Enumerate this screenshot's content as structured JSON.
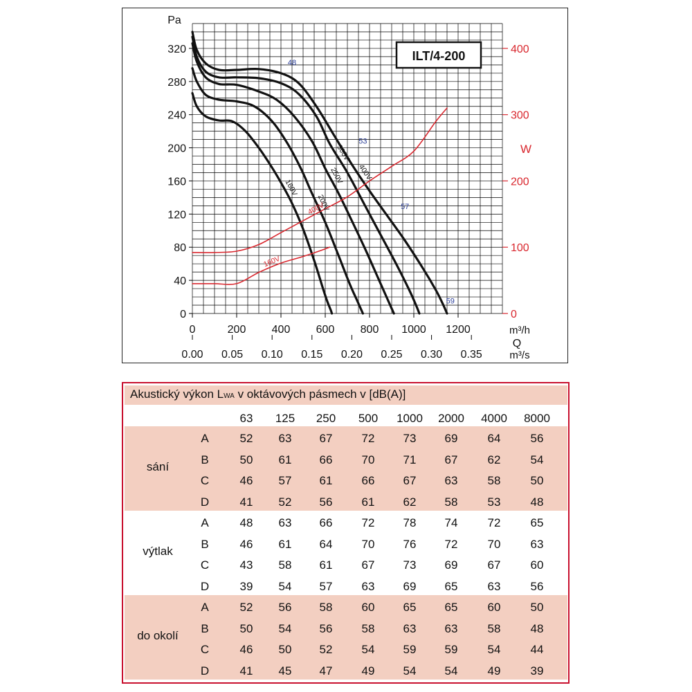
{
  "chart_data": {
    "type": "line",
    "title": "ILT/4-200",
    "y_left": {
      "label": "Pa",
      "range": [
        0,
        350
      ],
      "ticks": [
        0,
        40,
        80,
        120,
        160,
        200,
        240,
        280,
        320
      ]
    },
    "y_right": {
      "label": "W",
      "range": [
        0,
        400
      ],
      "ticks": [
        0,
        100,
        200,
        300,
        400
      ]
    },
    "x_primary": {
      "label": "m³/h",
      "range": [
        0,
        1400
      ],
      "ticks": [
        0,
        200,
        400,
        600,
        800,
        1000,
        1200
      ]
    },
    "x_secondary": {
      "prefix_label": "Q",
      "label": "m³/s",
      "ticks": [
        "0.00",
        "0.05",
        "0.10",
        "0.15",
        "0.20",
        "0.25",
        "0.30",
        "0.35"
      ]
    },
    "grid": true,
    "series": [
      {
        "name": "400V",
        "axis": "left",
        "color": "#111111",
        "x": [
          0,
          20,
          60,
          120,
          200,
          300,
          400,
          480,
          560,
          640,
          720,
          800,
          880,
          960,
          1040,
          1100,
          1130,
          1150
        ],
        "y": [
          340,
          318,
          302,
          294,
          294,
          295,
          290,
          278,
          250,
          215,
          180,
          148,
          118,
          88,
          55,
          28,
          12,
          0
        ]
      },
      {
        "name": "300V",
        "axis": "left",
        "color": "#111111",
        "x": [
          0,
          20,
          60,
          120,
          200,
          300,
          400,
          480,
          560,
          620,
          700,
          780,
          860,
          920,
          980,
          1010,
          1025
        ],
        "y": [
          334,
          310,
          292,
          285,
          285,
          284,
          278,
          265,
          238,
          205,
          170,
          130,
          90,
          60,
          28,
          10,
          0
        ]
      },
      {
        "name": "250V",
        "axis": "left",
        "color": "#111111",
        "x": [
          0,
          20,
          60,
          120,
          200,
          300,
          380,
          460,
          540,
          600,
          660,
          720,
          780,
          840,
          880,
          900,
          910
        ],
        "y": [
          326,
          304,
          285,
          277,
          276,
          268,
          258,
          238,
          208,
          175,
          145,
          112,
          78,
          42,
          18,
          6,
          0
        ]
      },
      {
        "name": "200V",
        "axis": "left",
        "color": "#111111",
        "x": [
          0,
          20,
          60,
          120,
          200,
          280,
          360,
          430,
          490,
          540,
          600,
          660,
          710,
          740,
          760,
          770
        ],
        "y": [
          296,
          280,
          264,
          258,
          256,
          250,
          232,
          205,
          175,
          145,
          110,
          70,
          36,
          18,
          6,
          0
        ]
      },
      {
        "name": "160V",
        "axis": "left",
        "color": "#111111",
        "x": [
          0,
          20,
          60,
          120,
          180,
          240,
          300,
          360,
          400,
          450,
          500,
          550,
          590,
          610,
          625,
          630
        ],
        "y": [
          266,
          250,
          238,
          233,
          232,
          220,
          200,
          176,
          158,
          133,
          102,
          64,
          30,
          14,
          4,
          0
        ]
      },
      {
        "name": "400V",
        "axis": "right",
        "color": "#d9272e",
        "x": [
          0,
          100,
          200,
          300,
          400,
          500,
          600,
          700,
          800,
          900,
          1000,
          1100,
          1150
        ],
        "y": [
          92,
          92,
          94,
          104,
          122,
          140,
          158,
          176,
          200,
          222,
          245,
          290,
          310
        ]
      },
      {
        "name": "160V",
        "axis": "right",
        "color": "#d9272e",
        "x": [
          0,
          100,
          200,
          300,
          400,
          500,
          580,
          620
        ],
        "y": [
          45,
          45,
          45,
          62,
          76,
          86,
          95,
          100
        ]
      }
    ],
    "curve_labels": [
      {
        "text": "400V",
        "series": 0
      },
      {
        "text": "300V",
        "series": 1
      },
      {
        "text": "250V",
        "series": 2
      },
      {
        "text": "200V",
        "series": 3
      },
      {
        "text": "160V",
        "series": 4
      },
      {
        "text": "400V",
        "series": 5
      },
      {
        "text": "160V",
        "series": 6
      }
    ],
    "annotations": [
      {
        "text": "48",
        "x": 450,
        "y": 300
      },
      {
        "text": "53",
        "x": 770,
        "y": 205
      },
      {
        "text": "57",
        "x": 960,
        "y": 126
      },
      {
        "text": "59",
        "x": 1165,
        "y": 12
      }
    ]
  },
  "table": {
    "title_main": "Akustický výkon L",
    "title_sub": "WA",
    "title_rest": " v oktávových pásmech v [dB(A)]",
    "columns": [
      "63",
      "125",
      "250",
      "500",
      "1000",
      "2000",
      "4000",
      "8000"
    ],
    "groups": [
      {
        "name": "sání",
        "rows": [
          {
            "label": "A",
            "values": [
              "52",
              "63",
              "67",
              "72",
              "73",
              "69",
              "64",
              "56"
            ]
          },
          {
            "label": "B",
            "values": [
              "50",
              "61",
              "66",
              "70",
              "71",
              "67",
              "62",
              "54"
            ]
          },
          {
            "label": "C",
            "values": [
              "46",
              "57",
              "61",
              "66",
              "67",
              "63",
              "58",
              "50"
            ]
          },
          {
            "label": "D",
            "values": [
              "41",
              "52",
              "56",
              "61",
              "62",
              "58",
              "53",
              "48"
            ]
          }
        ]
      },
      {
        "name": "výtlak",
        "rows": [
          {
            "label": "A",
            "values": [
              "48",
              "63",
              "66",
              "72",
              "78",
              "74",
              "72",
              "65"
            ]
          },
          {
            "label": "B",
            "values": [
              "46",
              "61",
              "64",
              "70",
              "76",
              "72",
              "70",
              "63"
            ]
          },
          {
            "label": "C",
            "values": [
              "43",
              "58",
              "61",
              "67",
              "73",
              "69",
              "67",
              "60"
            ]
          },
          {
            "label": "D",
            "values": [
              "39",
              "54",
              "57",
              "63",
              "69",
              "65",
              "63",
              "56"
            ]
          }
        ]
      },
      {
        "name": "do okolí",
        "rows": [
          {
            "label": "A",
            "values": [
              "52",
              "56",
              "58",
              "60",
              "65",
              "65",
              "60",
              "50"
            ]
          },
          {
            "label": "B",
            "values": [
              "50",
              "54",
              "56",
              "58",
              "63",
              "63",
              "58",
              "48"
            ]
          },
          {
            "label": "C",
            "values": [
              "46",
              "50",
              "52",
              "54",
              "59",
              "59",
              "54",
              "44"
            ]
          },
          {
            "label": "D",
            "values": [
              "41",
              "45",
              "47",
              "49",
              "54",
              "54",
              "49",
              "39"
            ]
          }
        ]
      }
    ]
  }
}
